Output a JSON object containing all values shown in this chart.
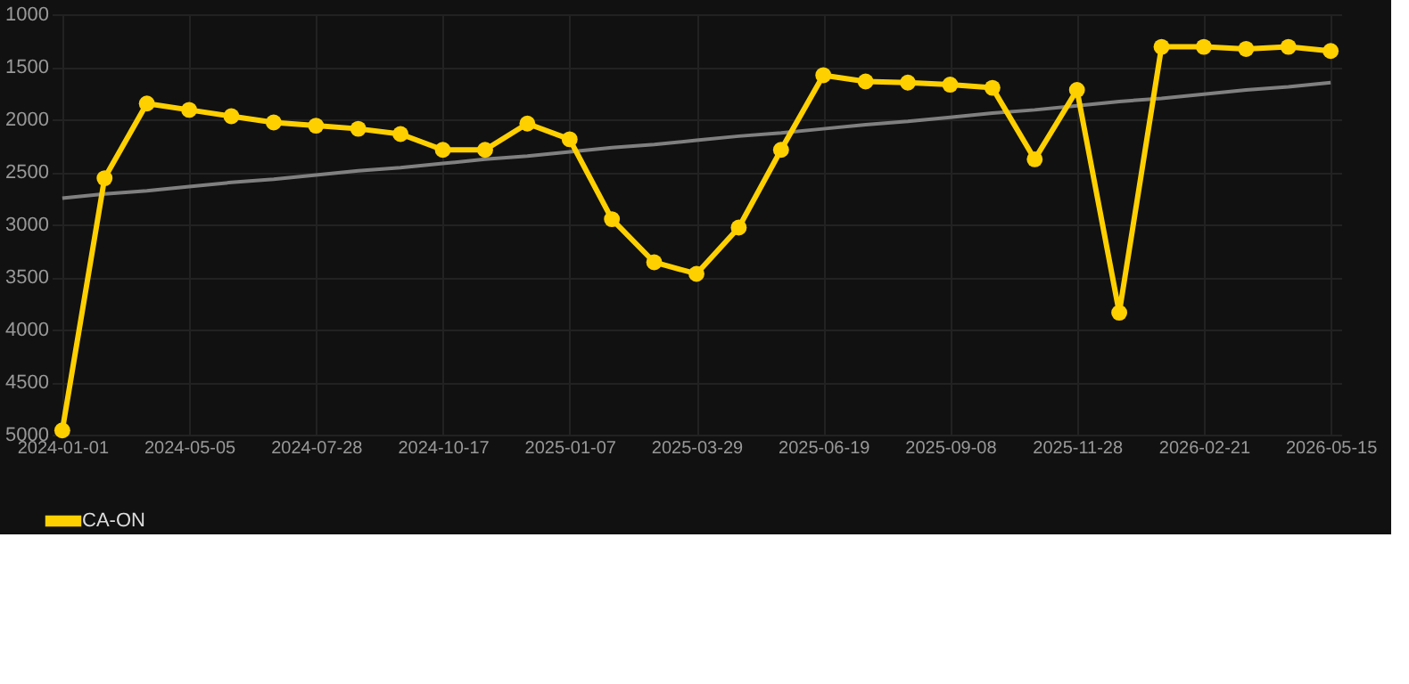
{
  "chart_data": {
    "type": "line",
    "categories": [
      "2024-01-01",
      null,
      null,
      "2024-05-05",
      null,
      null,
      "2024-07-28",
      null,
      null,
      "2024-10-17",
      null,
      null,
      "2025-01-07",
      null,
      null,
      "2025-03-29",
      null,
      null,
      "2025-06-19",
      null,
      null,
      "2025-09-08",
      null,
      null,
      "2025-11-28",
      null,
      null,
      "2026-02-21",
      null,
      null,
      "2026-05-15"
    ],
    "series": [
      {
        "name": "CA-ON",
        "color": "#ffd000",
        "marker": "circle",
        "values": [
          4960,
          2560,
          1850,
          1910,
          1970,
          2030,
          2060,
          2090,
          2140,
          2290,
          2290,
          2040,
          2190,
          2950,
          3360,
          3470,
          3030,
          2290,
          1580,
          1640,
          1650,
          1670,
          1700,
          2380,
          1720,
          3840,
          1310,
          1310,
          1330,
          1310,
          1350
        ]
      },
      {
        "type": "line",
        "color": "#808080",
        "marker": "none",
        "values": [
          2750,
          2710,
          2680,
          2640,
          2600,
          2570,
          2530,
          2490,
          2460,
          2420,
          2380,
          2350,
          2310,
          2270,
          2240,
          2200,
          2160,
          2130,
          2090,
          2050,
          2020,
          1980,
          1940,
          1910,
          1870,
          1830,
          1800,
          1760,
          1720,
          1690,
          1650
        ]
      }
    ],
    "ylim": [
      5000,
      1000
    ],
    "yticks": [
      1000,
      1500,
      2000,
      2500,
      3000,
      3500,
      4000,
      4500,
      5000
    ],
    "grid": true,
    "legend": "bottom"
  }
}
